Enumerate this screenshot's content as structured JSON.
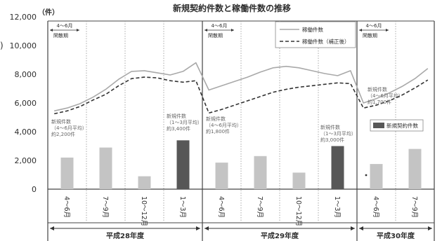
{
  "chart_data": {
    "type": "bar",
    "title": "新規契約件数と稼働件数の推移",
    "y_unit": "（件）",
    "ylim": [
      0,
      12000
    ],
    "grid": false,
    "yticks": [
      {
        "value": 12000,
        "label": "12,000"
      },
      {
        "value": 10000,
        "label": "10,000"
      },
      {
        "value": 8000,
        "label": "8,000"
      },
      {
        "value": 6000,
        "label": "6,000"
      },
      {
        "value": 4000,
        "label": "4,000"
      },
      {
        "value": 2000,
        "label": "2,000"
      },
      {
        "value": 0,
        "label": "0"
      }
    ],
    "fiscal_years": [
      {
        "label": "平成28年度",
        "quarters": [
          "4～6月",
          "7～9月",
          "10～12月",
          "1～3月"
        ],
        "top_note": {
          "period": "4～6月",
          "text": "閑散期"
        }
      },
      {
        "label": "平成29年度",
        "quarters": [
          "4～6月",
          "7～9月",
          "10～12月",
          "1～3月"
        ],
        "top_note": {
          "period": "4～6月",
          "text": "閑散期"
        }
      },
      {
        "label": "平成30年度",
        "quarters": [
          "4～6月",
          "7～9月"
        ],
        "top_note": {
          "period": "4～6月",
          "text": "閑散期"
        }
      }
    ],
    "bars": {
      "name": "新規契約件数",
      "values": [
        2200,
        2900,
        900,
        3400,
        1850,
        2300,
        1150,
        3000,
        1750,
        2800
      ],
      "highlight_indices": [
        3,
        7
      ]
    },
    "lines": [
      {
        "name": "稼働件数",
        "style": "solid",
        "values": [
          5450,
          5650,
          5950,
          6400,
          6950,
          7650,
          8200,
          8250,
          8100,
          7950,
          8200,
          8800,
          6900,
          7200,
          7500,
          7800,
          8150,
          8450,
          8550,
          8450,
          8250,
          8050,
          7900,
          8250,
          6000,
          6300,
          6700,
          7150,
          7700,
          8400
        ]
      },
      {
        "name": "稼働件数（補正後）",
        "style": "dashed",
        "values": [
          5250,
          5450,
          5750,
          6200,
          6600,
          7200,
          7700,
          7800,
          7750,
          7550,
          7450,
          7550,
          5300,
          5550,
          5850,
          6150,
          6450,
          6750,
          6950,
          7100,
          7200,
          7300,
          7400,
          7350,
          5650,
          5850,
          6150,
          6550,
          7050,
          7600
        ]
      }
    ],
    "annotations": [
      {
        "category_index": 0,
        "lines": [
          "新規件数",
          "（4～6月平均）",
          "約2,200件"
        ]
      },
      {
        "category_index": 3,
        "lines": [
          "新規件数",
          "（1～3月平均）",
          "約3,400件"
        ]
      },
      {
        "category_index": 4,
        "lines": [
          "新規件数",
          "（4～6月平均）",
          "約1,800件"
        ]
      },
      {
        "category_index": 7,
        "lines": [
          "新規件数",
          "（1～3月平均）",
          "約3,000件"
        ]
      },
      {
        "category_index": 8,
        "lines": [
          "新規件数",
          "（4～6月平均）",
          "約1,700件"
        ]
      }
    ]
  },
  "edge_fragment": ")",
  "colors": {
    "bar": "#c4c4c4",
    "bar_highlight": "#575757",
    "line_solid": "#a9a9a9",
    "line_dashed": "#333333",
    "frame": "#444444"
  }
}
